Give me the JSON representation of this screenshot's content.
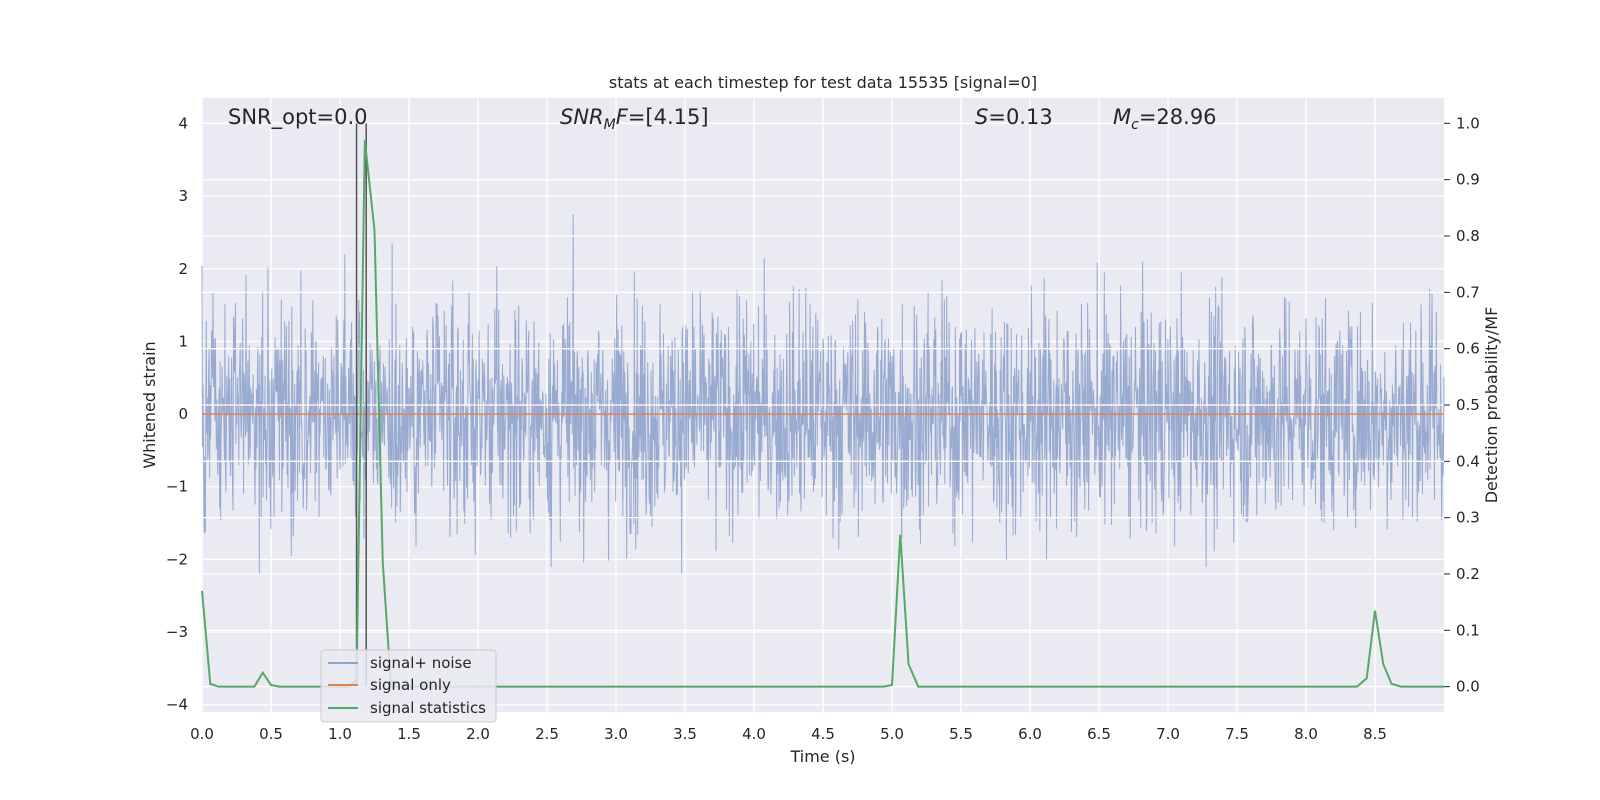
{
  "chart_data": {
    "type": "line",
    "title": "stats at each timestep for test data 15535 [signal=0]",
    "xlabel": "Time (s)",
    "ylabel": "Whitened strain",
    "y2label": "Detection probability/MF",
    "xlim": [
      0,
      9.0
    ],
    "ylim": [
      -4.1,
      4.35
    ],
    "y2lim": [
      -0.045,
      1.045
    ],
    "x_ticks": [
      0.0,
      0.5,
      1.0,
      1.5,
      2.0,
      2.5,
      3.0,
      3.5,
      4.0,
      4.5,
      5.0,
      5.5,
      6.0,
      6.5,
      7.0,
      7.5,
      8.0,
      8.5
    ],
    "x_tick_labels": [
      "0.0",
      "0.5",
      "1.0",
      "1.5",
      "2.0",
      "2.5",
      "3.0",
      "3.5",
      "4.0",
      "4.5",
      "5.0",
      "5.5",
      "6.0",
      "6.5",
      "7.0",
      "7.5",
      "8.0",
      "8.5"
    ],
    "y_ticks": [
      4,
      3,
      2,
      1,
      0,
      -1,
      -2,
      -3,
      -4
    ],
    "y_tick_labels": [
      "4",
      "3",
      "2",
      "1",
      "0",
      "−1",
      "−2",
      "−3",
      "−4"
    ],
    "y2_ticks": [
      1.0,
      0.9,
      0.8,
      0.7,
      0.6,
      0.5,
      0.4,
      0.3,
      0.2,
      0.1,
      0.0
    ],
    "y2_tick_labels": [
      "1.0",
      "0.9",
      "0.8",
      "0.7",
      "0.6",
      "0.5",
      "0.4",
      "0.3",
      "0.2",
      "0.1",
      "0.0"
    ],
    "grid": true,
    "legend": {
      "placement": "lower-left",
      "entries": [
        "signal+ noise",
        "signal only",
        "signal statistics"
      ]
    },
    "series": [
      {
        "name": "signal+ noise",
        "axis": "left",
        "color": "#8fa3cc",
        "kind": "noise",
        "envelope": {
          "typical_max": 1.7,
          "typical_min": -1.6,
          "peak_max": 4.0,
          "peak_min": -3.7
        }
      },
      {
        "name": "signal only",
        "axis": "left",
        "color": "#dd8452",
        "x": [
          0,
          9.0
        ],
        "y": [
          0,
          0
        ]
      },
      {
        "name": "signal statistics",
        "axis": "right",
        "color": "#55a868",
        "x": [
          0.0,
          0.06,
          0.12,
          0.38,
          0.44,
          0.5,
          0.56,
          1.06,
          1.12,
          1.18,
          1.25,
          1.31,
          1.37,
          4.94,
          5.0,
          5.06,
          5.12,
          5.19,
          8.37,
          8.44,
          8.5,
          8.56,
          8.62,
          8.69,
          8.75,
          9.0
        ],
        "y": [
          0.17,
          0.005,
          0.0,
          0.0,
          0.025,
          0.003,
          0.0,
          0.0,
          0.012,
          0.97,
          0.81,
          0.22,
          0.0,
          0.0,
          0.003,
          0.27,
          0.04,
          0.0,
          0.0,
          0.015,
          0.135,
          0.04,
          0.005,
          0.0,
          0.0,
          0.0
        ]
      }
    ],
    "markers": [
      {
        "x": 1.12,
        "color": "#555555"
      },
      {
        "x": 1.19,
        "color": "#555555"
      }
    ],
    "annotations": [
      {
        "text": "SNR_opt=0.0"
      },
      {
        "text": "SNR_M F=[4.15]"
      },
      {
        "text": "S=0.13"
      },
      {
        "text": "M_c=28.96"
      }
    ]
  }
}
